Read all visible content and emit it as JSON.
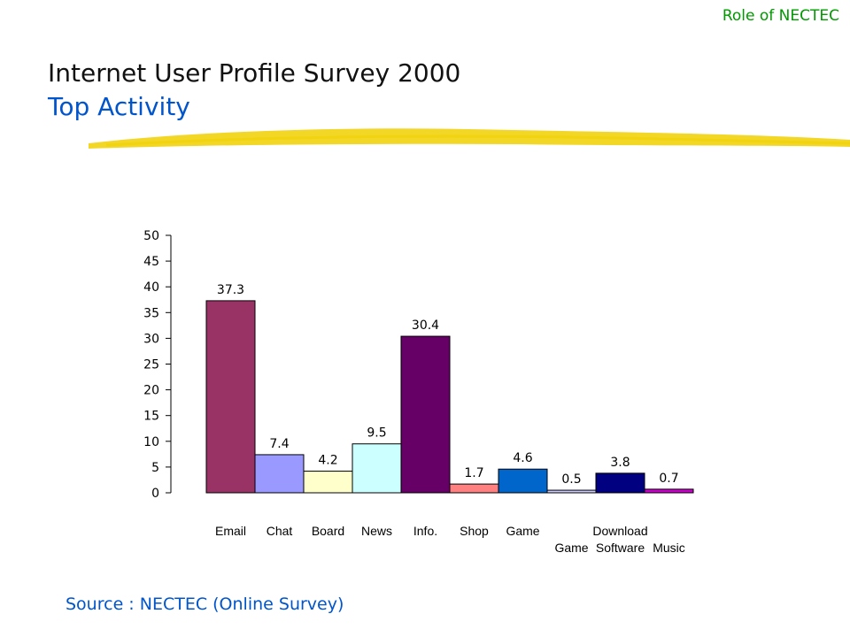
{
  "header": {
    "section_label": "Role of NECTEC",
    "title": "Internet User Profile Survey 2000",
    "subtitle": "Top Activity"
  },
  "footer": {
    "source": "Source : NECTEC (Online Survey)"
  },
  "colors": {
    "section_label": "#009900",
    "subtitle": "#0055cc",
    "source": "#0055cc",
    "highlight": "#f0d000"
  },
  "chart_data": {
    "type": "bar",
    "categories": [
      "Email",
      "Chat",
      "Board",
      "News",
      "Info.",
      "Shop",
      "Game",
      "Game",
      "Download Software",
      "Music"
    ],
    "category_lines": [
      [
        "Email"
      ],
      [
        "Chat"
      ],
      [
        "Board"
      ],
      [
        "News"
      ],
      [
        "Info."
      ],
      [
        "Shop"
      ],
      [
        "Game"
      ],
      [
        "",
        "Game"
      ],
      [
        "Download",
        "Software"
      ],
      [
        "",
        "Music"
      ]
    ],
    "values": [
      37.3,
      7.4,
      4.2,
      9.5,
      30.4,
      1.7,
      4.6,
      0.5,
      3.8,
      0.7
    ],
    "value_labels": [
      "37.3",
      "7.4",
      "4.2",
      "9.5",
      "30.4",
      "1.7",
      "4.6",
      "0.5",
      "3.8",
      "0.7"
    ],
    "bar_colors": [
      "#993366",
      "#9999ff",
      "#ffffcc",
      "#ccffff",
      "#660066",
      "#ff8080",
      "#0066cc",
      "#ccccff",
      "#000080",
      "#cc00cc"
    ],
    "yticks": [
      0,
      5,
      10,
      15,
      20,
      25,
      30,
      35,
      40,
      45,
      50
    ],
    "ylim": [
      0,
      50
    ],
    "grid": false,
    "legend": "none"
  }
}
